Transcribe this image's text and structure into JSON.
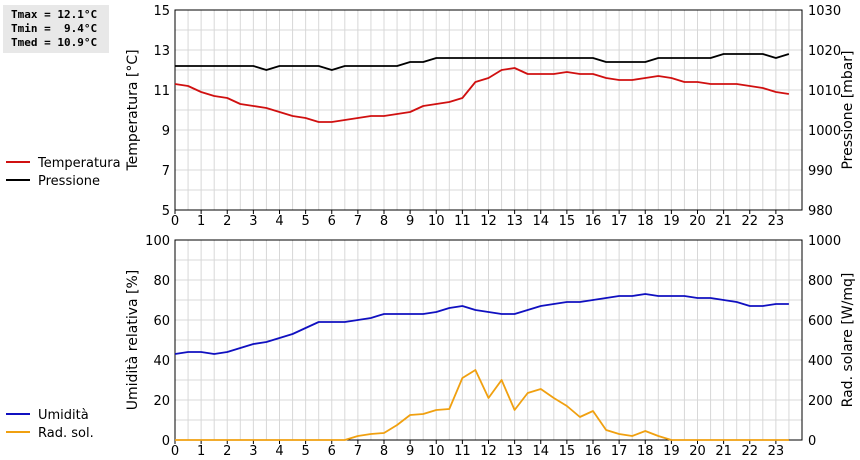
{
  "stats": {
    "tmax": "Tmax = 12.1°C",
    "tmin": "Tmin =  9.4°C",
    "tmed": "Tmed = 10.9°C"
  },
  "colors": {
    "temperature": "#d01010",
    "pressure": "#000000",
    "humidity": "#1010c0",
    "radiation": "#f0a010",
    "grid": "#d8d8d8"
  },
  "chart_data": [
    {
      "type": "line",
      "x_ticks": [
        "0",
        "1",
        "2",
        "3",
        "4",
        "5",
        "6",
        "7",
        "8",
        "9",
        "10",
        "11",
        "12",
        "13",
        "14",
        "15",
        "16",
        "17",
        "18",
        "19",
        "20",
        "21",
        "22",
        "23"
      ],
      "ylabel": "Temperatura [°C]",
      "y2label": "Pressione [mbar]",
      "ylim": [
        5,
        15
      ],
      "y_ticks": [
        5,
        7,
        9,
        11,
        13,
        15
      ],
      "y2lim": [
        980,
        1030
      ],
      "y2_ticks": [
        980,
        990,
        1000,
        1010,
        1020,
        1030
      ],
      "grid": true,
      "legend_position": "left",
      "series": [
        {
          "name": "Temperatura",
          "axis": "left",
          "x": [
            0,
            0.5,
            1,
            1.5,
            2,
            2.5,
            3,
            3.5,
            4,
            4.5,
            5,
            5.5,
            6,
            6.5,
            7,
            7.5,
            8,
            8.5,
            9,
            9.5,
            10,
            10.5,
            11,
            11.5,
            12,
            12.5,
            13,
            13.5,
            14,
            14.5,
            15,
            15.5,
            16,
            16.5,
            17,
            17.5,
            18,
            18.5,
            19,
            19.5,
            20,
            20.5,
            21,
            21.5,
            22,
            22.5,
            23,
            23.5
          ],
          "y": [
            11.3,
            11.2,
            10.9,
            10.7,
            10.6,
            10.3,
            10.2,
            10.1,
            9.9,
            9.7,
            9.6,
            9.4,
            9.4,
            9.5,
            9.6,
            9.7,
            9.7,
            9.8,
            9.9,
            10.2,
            10.3,
            10.4,
            10.6,
            11.4,
            11.6,
            12.0,
            12.1,
            11.8,
            11.8,
            11.8,
            11.9,
            11.8,
            11.8,
            11.6,
            11.5,
            11.5,
            11.6,
            11.7,
            11.6,
            11.4,
            11.4,
            11.3,
            11.3,
            11.3,
            11.2,
            11.1,
            10.9,
            10.8
          ]
        },
        {
          "name": "Pressione",
          "axis": "right",
          "x": [
            0,
            0.5,
            1,
            1.5,
            2,
            2.5,
            3,
            3.5,
            4,
            4.5,
            5,
            5.5,
            6,
            6.5,
            7,
            7.5,
            8,
            8.5,
            9,
            9.5,
            10,
            10.5,
            11,
            11.5,
            12,
            12.5,
            13,
            13.5,
            14,
            14.5,
            15,
            15.5,
            16,
            16.5,
            17,
            17.5,
            18,
            18.5,
            19,
            19.5,
            20,
            20.5,
            21,
            21.5,
            22,
            22.5,
            23,
            23.5
          ],
          "y": [
            1016,
            1016,
            1016,
            1016,
            1016,
            1016,
            1016,
            1015,
            1016,
            1016,
            1016,
            1016,
            1015,
            1016,
            1016,
            1016,
            1016,
            1016,
            1017,
            1017,
            1018,
            1018,
            1018,
            1018,
            1018,
            1018,
            1018,
            1018,
            1018,
            1018,
            1018,
            1018,
            1018,
            1017,
            1017,
            1017,
            1017,
            1018,
            1018,
            1018,
            1018,
            1018,
            1019,
            1019,
            1019,
            1019,
            1018,
            1019
          ]
        }
      ]
    },
    {
      "type": "line",
      "x_ticks": [
        "0",
        "1",
        "2",
        "3",
        "4",
        "5",
        "6",
        "7",
        "8",
        "9",
        "10",
        "11",
        "12",
        "13",
        "14",
        "15",
        "16",
        "17",
        "18",
        "19",
        "20",
        "21",
        "22",
        "23"
      ],
      "ylabel": "Umidità relativa [%]",
      "y2label": "Rad. solare [W/mq]",
      "ylim": [
        0,
        100
      ],
      "y_ticks": [
        0,
        20,
        40,
        60,
        80,
        100
      ],
      "y2lim": [
        0,
        1000
      ],
      "y2_ticks": [
        0,
        200,
        400,
        600,
        800,
        1000
      ],
      "grid": true,
      "legend_position": "left",
      "series": [
        {
          "name": "Umidità",
          "axis": "left",
          "x": [
            0,
            0.5,
            1,
            1.5,
            2,
            2.5,
            3,
            3.5,
            4,
            4.5,
            5,
            5.5,
            6,
            6.5,
            7,
            7.5,
            8,
            8.5,
            9,
            9.5,
            10,
            10.5,
            11,
            11.5,
            12,
            12.5,
            13,
            13.5,
            14,
            14.5,
            15,
            15.5,
            16,
            16.5,
            17,
            17.5,
            18,
            18.5,
            19,
            19.5,
            20,
            20.5,
            21,
            21.5,
            22,
            22.5,
            23,
            23.5
          ],
          "y": [
            43,
            44,
            44,
            43,
            44,
            46,
            48,
            49,
            51,
            53,
            56,
            59,
            59,
            59,
            60,
            61,
            63,
            63,
            63,
            63,
            64,
            66,
            67,
            65,
            64,
            63,
            63,
            65,
            67,
            68,
            69,
            69,
            70,
            71,
            72,
            72,
            73,
            72,
            72,
            72,
            71,
            71,
            70,
            69,
            67,
            67,
            68,
            68
          ]
        },
        {
          "name": "Rad. sol.",
          "axis": "right",
          "x": [
            0,
            0.5,
            1,
            1.5,
            2,
            2.5,
            3,
            3.5,
            4,
            4.5,
            5,
            5.5,
            6,
            6.5,
            7,
            7.5,
            8,
            8.5,
            9,
            9.5,
            10,
            10.5,
            11,
            11.5,
            12,
            12.5,
            13,
            13.5,
            14,
            14.5,
            15,
            15.5,
            16,
            16.5,
            17,
            17.5,
            18,
            18.5,
            19,
            19.5,
            20,
            20.5,
            21,
            21.5,
            22,
            22.5,
            23,
            23.5
          ],
          "y": [
            0,
            0,
            0,
            0,
            0,
            0,
            0,
            0,
            0,
            0,
            0,
            0,
            0,
            0,
            20,
            30,
            35,
            75,
            125,
            130,
            150,
            155,
            310,
            350,
            210,
            300,
            150,
            235,
            255,
            210,
            170,
            115,
            145,
            50,
            30,
            20,
            45,
            20,
            0,
            0,
            0,
            0,
            0,
            0,
            0,
            0,
            0,
            0
          ]
        }
      ]
    }
  ]
}
